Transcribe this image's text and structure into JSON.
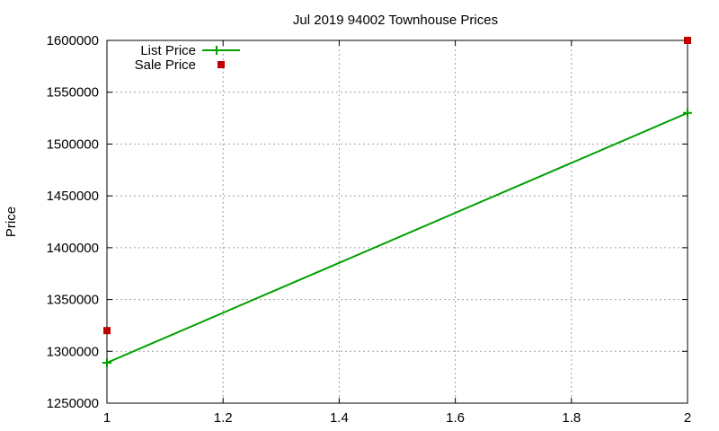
{
  "chart_data": {
    "type": "line",
    "title": "Jul 2019 94002 Townhouse Prices",
    "xlabel": "",
    "ylabel": "Price",
    "xlim": [
      1,
      2
    ],
    "ylim": [
      1250000,
      1600000
    ],
    "xticks": [
      1,
      1.2,
      1.4,
      1.6,
      1.8,
      2
    ],
    "xtick_labels": [
      "1",
      "1.2",
      "1.4",
      "1.6",
      "1.8",
      "2"
    ],
    "yticks": [
      1250000,
      1300000,
      1350000,
      1400000,
      1450000,
      1500000,
      1550000,
      1600000
    ],
    "ytick_labels": [
      "1250000",
      "1300000",
      "1350000",
      "1400000",
      "1450000",
      "1500000",
      "1550000",
      "1600000"
    ],
    "grid": true,
    "legend_position": "top-left",
    "series": [
      {
        "name": "List Price",
        "style": "linespoints",
        "color": "#00a000",
        "x": [
          1,
          2
        ],
        "y": [
          1289000,
          1530000
        ]
      },
      {
        "name": "Sale Price",
        "style": "points",
        "color": "#c00000",
        "x": [
          1,
          2
        ],
        "y": [
          1320000,
          1600000
        ]
      }
    ]
  }
}
